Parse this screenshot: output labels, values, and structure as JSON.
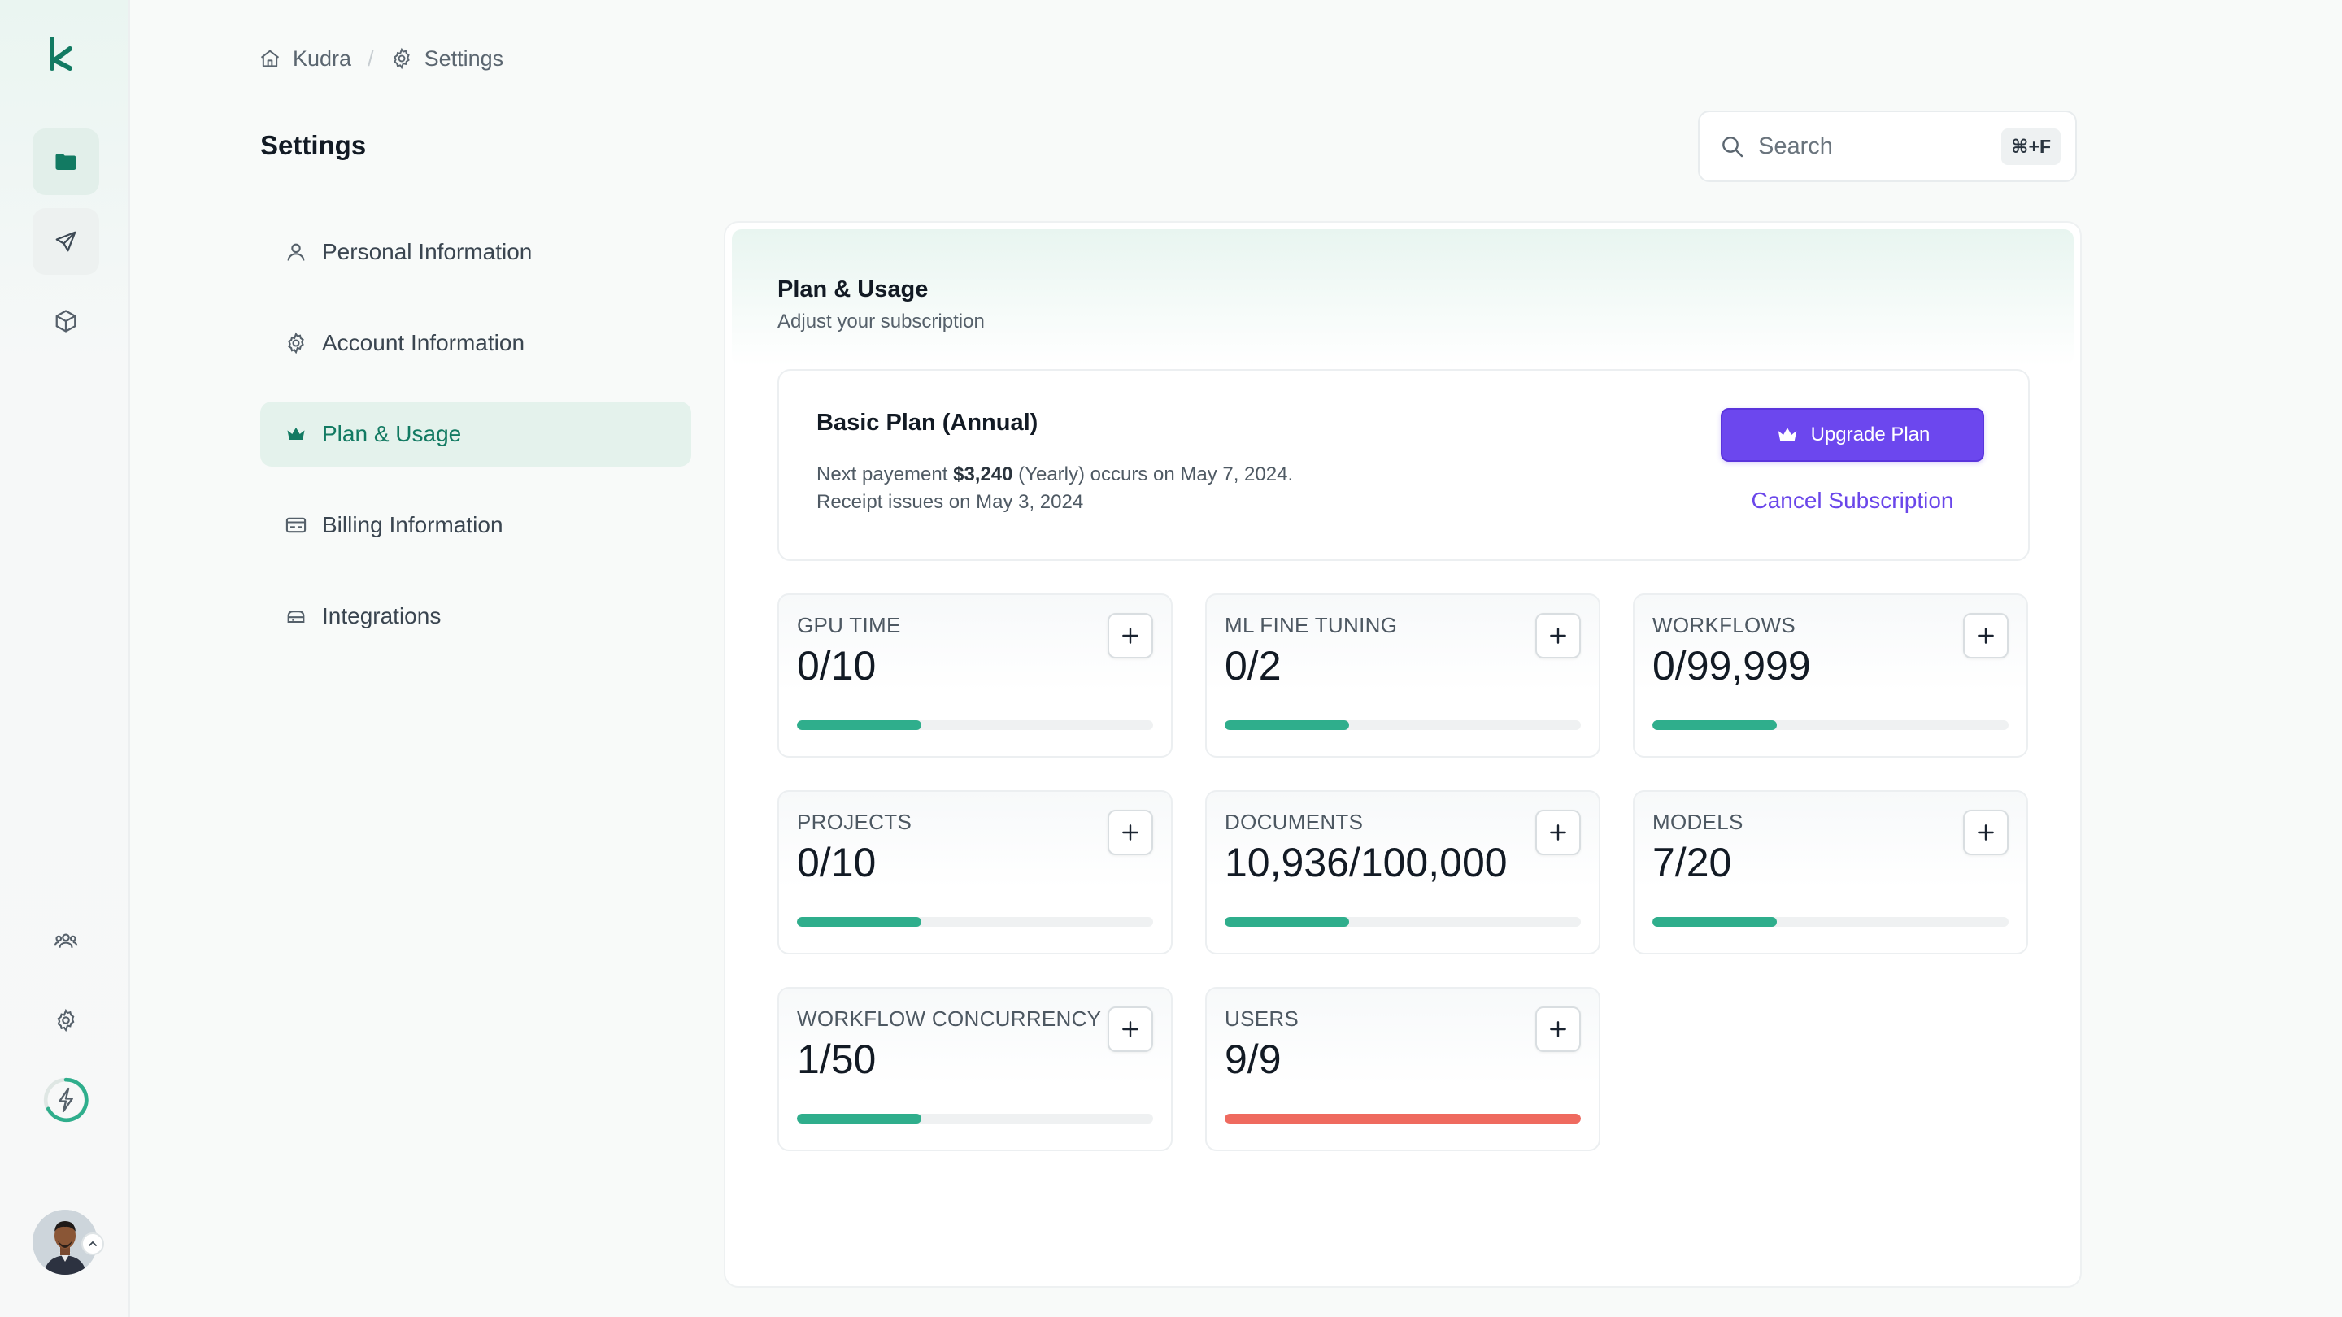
{
  "breadcrumb": {
    "home": "Kudra",
    "current": "Settings"
  },
  "page_title": "Settings",
  "search": {
    "placeholder": "Search",
    "shortcut": "⌘+F"
  },
  "menu": [
    {
      "label": "Personal Information",
      "icon": "user-icon",
      "active": false
    },
    {
      "label": "Account Information",
      "icon": "gear-icon",
      "active": false
    },
    {
      "label": "Plan & Usage",
      "icon": "crown-icon",
      "active": true
    },
    {
      "label": "Billing Information",
      "icon": "billing-icon",
      "active": false
    },
    {
      "label": "Integrations",
      "icon": "integrations-icon",
      "active": false
    }
  ],
  "panel": {
    "title": "Plan & Usage",
    "subtitle": "Adjust your subscription"
  },
  "plan": {
    "name": "Basic Plan (Annual)",
    "payment_prefix": "Next payement ",
    "payment_amount": "$3,240",
    "payment_suffix": " (Yearly) occurs on May 7, 2024.",
    "receipt": "Receipt issues on May 3, 2024",
    "upgrade_label": "Upgrade Plan",
    "cancel_label": "Cancel Subscription"
  },
  "usage": [
    {
      "label": "GPU TIME",
      "value": "0/10",
      "fill": 0.35,
      "status": "ok"
    },
    {
      "label": "ML FINE TUNING",
      "value": "0/2",
      "fill": 0.35,
      "status": "ok"
    },
    {
      "label": "WORKFLOWS",
      "value": "0/99,999",
      "fill": 0.35,
      "status": "ok"
    },
    {
      "label": "PROJECTS",
      "value": "0/10",
      "fill": 0.35,
      "status": "ok"
    },
    {
      "label": "DOCUMENTS",
      "value": "10,936/100,000",
      "fill": 0.35,
      "status": "ok"
    },
    {
      "label": "MODELS",
      "value": "7/20",
      "fill": 0.35,
      "status": "ok"
    },
    {
      "label": "WORKFLOW CONCURRENCY",
      "value": "1/50",
      "fill": 0.35,
      "status": "ok"
    },
    {
      "label": "USERS",
      "value": "9/9",
      "fill": 1.0,
      "status": "full"
    }
  ],
  "rail": {
    "top_icons": [
      "folder-icon",
      "send-icon",
      "cube-icon"
    ],
    "bottom_icons": [
      "team-icon",
      "settings-icon",
      "credits-icon"
    ]
  },
  "colors": {
    "accent": "#127a62",
    "progress_ok": "#2fae8c",
    "progress_full": "#ef6a5f",
    "upgrade": "#6c47ee"
  }
}
